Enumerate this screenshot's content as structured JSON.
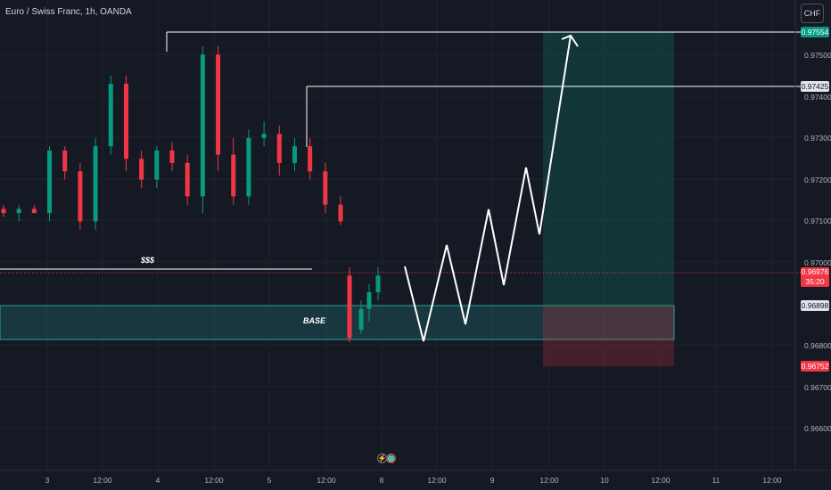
{
  "header": {
    "symbol_title": "Euro / Swiss Franc, 1h, OANDA",
    "currency_button": "CHF"
  },
  "price_axis": {
    "ticks": [
      "0.97500",
      "0.97400",
      "0.97300",
      "0.97200",
      "0.97100",
      "0.97000",
      "0.96800",
      "0.96700",
      "0.96600"
    ]
  },
  "time_axis": {
    "labels": [
      "3",
      "12:00",
      "4",
      "12:00",
      "5",
      "12:00",
      "8",
      "12:00",
      "9",
      "12:00",
      "10",
      "12:00",
      "11",
      "12:00"
    ]
  },
  "price_tags": {
    "target_high": "0.97554",
    "target_mid": "0.97425",
    "current_price": "0.96976",
    "countdown": "35:20",
    "entry": "0.96898",
    "stop": "0.96752"
  },
  "annotations": {
    "liquidity": "$$$",
    "base_zone": "BASE"
  },
  "colors": {
    "up": "#089981",
    "down": "#f23645",
    "background": "#151924",
    "zone": "#26a69a",
    "target_tag": "#089981",
    "stop_tag": "#f23645"
  },
  "chart_data": {
    "type": "candlestick",
    "symbol": "EURCHF",
    "timeframe": "1h",
    "ylim": [
      0.9655,
      0.9762
    ],
    "candles_approx": [
      [
        0.9713,
        0.9714,
        0.9711,
        0.9712
      ],
      [
        0.9712,
        0.9714,
        0.971,
        0.9713
      ],
      [
        0.9713,
        0.9714,
        0.9712,
        0.9712
      ],
      [
        0.9712,
        0.9728,
        0.971,
        0.9727
      ],
      [
        0.9727,
        0.9728,
        0.972,
        0.9722
      ],
      [
        0.9722,
        0.9724,
        0.9708,
        0.971
      ],
      [
        0.971,
        0.973,
        0.9708,
        0.9728
      ],
      [
        0.9728,
        0.9745,
        0.9726,
        0.9743
      ],
      [
        0.9743,
        0.9745,
        0.9722,
        0.9725
      ],
      [
        0.9725,
        0.9727,
        0.9718,
        0.972
      ],
      [
        0.972,
        0.9728,
        0.9718,
        0.9727
      ],
      [
        0.9727,
        0.9729,
        0.9722,
        0.9724
      ],
      [
        0.9724,
        0.9726,
        0.9714,
        0.9716
      ],
      [
        0.9716,
        0.9752,
        0.9712,
        0.975
      ],
      [
        0.975,
        0.9752,
        0.9722,
        0.9726
      ],
      [
        0.9726,
        0.973,
        0.9714,
        0.9716
      ],
      [
        0.9716,
        0.9732,
        0.9714,
        0.973
      ],
      [
        0.973,
        0.9734,
        0.9728,
        0.9731
      ],
      [
        0.9731,
        0.9733,
        0.9721,
        0.9724
      ],
      [
        0.9724,
        0.973,
        0.9722,
        0.9728
      ],
      [
        0.9728,
        0.973,
        0.972,
        0.9722
      ],
      [
        0.9722,
        0.9724,
        0.9712,
        0.9714
      ],
      [
        0.9714,
        0.9716,
        0.9709,
        0.971
      ],
      [
        0.9697,
        0.9699,
        0.9681,
        0.9682
      ],
      [
        0.9684,
        0.9691,
        0.9683,
        0.9689
      ],
      [
        0.9689,
        0.9695,
        0.9686,
        0.9693
      ],
      [
        0.9693,
        0.9699,
        0.9691,
        0.9697
      ]
    ],
    "zones": [
      {
        "name": "BASE",
        "from": 0.9682,
        "to": 0.96898
      },
      {
        "name": "target",
        "from": 0.96898,
        "to": 0.97554
      },
      {
        "name": "stop",
        "from": 0.96752,
        "to": 0.9682
      }
    ],
    "lines": [
      {
        "name": "$$$",
        "price": 0.9699
      },
      {
        "name": "high",
        "price": 0.97554
      },
      {
        "name": "level",
        "price": 0.97425
      }
    ]
  }
}
